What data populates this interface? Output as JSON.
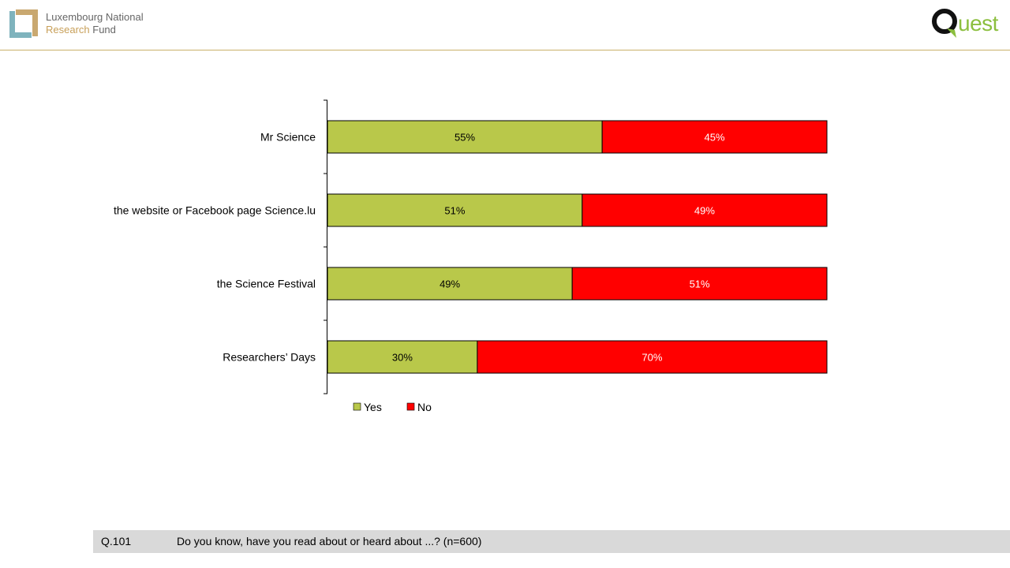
{
  "header": {
    "fnr_line1": "Luxembourg National",
    "fnr_line2_accent": "Research",
    "fnr_line2_rest": " Fund",
    "quest_label": "uest"
  },
  "colors": {
    "yes": "#b9c84a",
    "no": "#ff0000",
    "gold": "#c9b16a",
    "teal": "#7fb3bd"
  },
  "chart_data": {
    "type": "bar",
    "orientation": "horizontal",
    "stacked": true,
    "categories": [
      "Mr Science",
      "the website or Facebook page Science.lu",
      "the Science Festival",
      "Researchers’ Days"
    ],
    "series": [
      {
        "name": "Yes",
        "values": [
          55,
          51,
          49,
          30
        ],
        "labels": [
          "55%",
          "51%",
          "49%",
          "30%"
        ]
      },
      {
        "name": "No",
        "values": [
          45,
          49,
          51,
          70
        ],
        "labels": [
          "45%",
          "49%",
          "51%",
          "70%"
        ]
      }
    ],
    "xlim": [
      0,
      100
    ],
    "legend": "bottom-left",
    "grid": false
  },
  "footer": {
    "question_number": "Q.101",
    "question_text": "Do you know, have you read about or heard about ...? (n=600)"
  }
}
